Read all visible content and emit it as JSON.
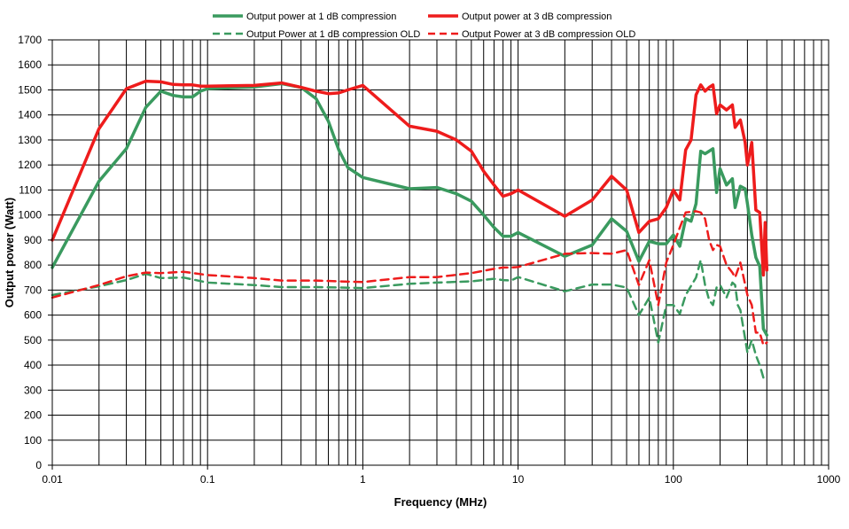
{
  "chart_data": {
    "type": "line",
    "xlabel": "Frequency (MHz)",
    "ylabel": "Output power (Watt)",
    "x_scale": "log",
    "xlim": [
      0.01,
      1000
    ],
    "ylim": [
      0,
      1700
    ],
    "grid": true,
    "legend_position": "top",
    "x_ticks": [
      "0.01",
      "0.1",
      "1",
      "10",
      "100",
      "1000"
    ],
    "y_ticks": [
      "0",
      "100",
      "200",
      "300",
      "400",
      "500",
      "600",
      "700",
      "800",
      "900",
      "1000",
      "1100",
      "1200",
      "1300",
      "1400",
      "1500",
      "1600",
      "1700"
    ],
    "series": [
      {
        "name": "Output power at 1 dB compression",
        "color": "#3a9a5f",
        "style": "solid",
        "points": [
          [
            0.01,
            790
          ],
          [
            0.02,
            1135
          ],
          [
            0.03,
            1265
          ],
          [
            0.04,
            1430
          ],
          [
            0.05,
            1495
          ],
          [
            0.06,
            1478
          ],
          [
            0.07,
            1472
          ],
          [
            0.08,
            1472
          ],
          [
            0.09,
            1495
          ],
          [
            0.1,
            1505
          ],
          [
            0.2,
            1512
          ],
          [
            0.3,
            1525
          ],
          [
            0.4,
            1510
          ],
          [
            0.5,
            1465
          ],
          [
            0.6,
            1375
          ],
          [
            0.7,
            1260
          ],
          [
            0.8,
            1190
          ],
          [
            1,
            1150
          ],
          [
            2,
            1105
          ],
          [
            3,
            1110
          ],
          [
            4,
            1085
          ],
          [
            5,
            1055
          ],
          [
            6,
            1000
          ],
          [
            7,
            950
          ],
          [
            8,
            915
          ],
          [
            9,
            915
          ],
          [
            10,
            930
          ],
          [
            20,
            835
          ],
          [
            30,
            880
          ],
          [
            40,
            985
          ],
          [
            50,
            935
          ],
          [
            60,
            815
          ],
          [
            70,
            895
          ],
          [
            80,
            885
          ],
          [
            90,
            885
          ],
          [
            100,
            920
          ],
          [
            110,
            875
          ],
          [
            120,
            985
          ],
          [
            130,
            975
          ],
          [
            140,
            1045
          ],
          [
            150,
            1255
          ],
          [
            160,
            1245
          ],
          [
            170,
            1255
          ],
          [
            180,
            1265
          ],
          [
            190,
            1090
          ],
          [
            200,
            1185
          ],
          [
            220,
            1120
          ],
          [
            240,
            1145
          ],
          [
            250,
            1030
          ],
          [
            270,
            1115
          ],
          [
            290,
            1105
          ],
          [
            300,
            1045
          ],
          [
            320,
            920
          ],
          [
            340,
            830
          ],
          [
            360,
            795
          ],
          [
            380,
            545
          ],
          [
            400,
            520
          ]
        ]
      },
      {
        "name": "Output power at 3 dB compression",
        "color": "#ee1c1c",
        "style": "solid",
        "points": [
          [
            0.01,
            900
          ],
          [
            0.02,
            1345
          ],
          [
            0.03,
            1505
          ],
          [
            0.04,
            1535
          ],
          [
            0.05,
            1532
          ],
          [
            0.06,
            1522
          ],
          [
            0.07,
            1520
          ],
          [
            0.08,
            1520
          ],
          [
            0.09,
            1515
          ],
          [
            0.1,
            1515
          ],
          [
            0.2,
            1518
          ],
          [
            0.3,
            1528
          ],
          [
            0.4,
            1510
          ],
          [
            0.5,
            1495
          ],
          [
            0.6,
            1485
          ],
          [
            0.7,
            1488
          ],
          [
            0.8,
            1500
          ],
          [
            1,
            1518
          ],
          [
            2,
            1355
          ],
          [
            3,
            1335
          ],
          [
            4,
            1300
          ],
          [
            5,
            1255
          ],
          [
            6,
            1175
          ],
          [
            7,
            1120
          ],
          [
            8,
            1075
          ],
          [
            9,
            1085
          ],
          [
            10,
            1100
          ],
          [
            20,
            995
          ],
          [
            30,
            1060
          ],
          [
            40,
            1155
          ],
          [
            50,
            1100
          ],
          [
            60,
            930
          ],
          [
            70,
            975
          ],
          [
            80,
            985
          ],
          [
            90,
            1030
          ],
          [
            100,
            1100
          ],
          [
            110,
            1060
          ],
          [
            120,
            1260
          ],
          [
            130,
            1300
          ],
          [
            140,
            1480
          ],
          [
            150,
            1520
          ],
          [
            160,
            1495
          ],
          [
            170,
            1510
          ],
          [
            180,
            1520
          ],
          [
            190,
            1405
          ],
          [
            200,
            1440
          ],
          [
            220,
            1420
          ],
          [
            240,
            1440
          ],
          [
            250,
            1350
          ],
          [
            270,
            1380
          ],
          [
            290,
            1290
          ],
          [
            300,
            1200
          ],
          [
            320,
            1290
          ],
          [
            340,
            1020
          ],
          [
            360,
            1010
          ],
          [
            380,
            760
          ],
          [
            390,
            970
          ],
          [
            400,
            780
          ]
        ]
      },
      {
        "name": "Output Power at 1 dB compression OLD",
        "color": "#3a9a5f",
        "style": "dashed",
        "points": [
          [
            0.01,
            680
          ],
          [
            0.02,
            715
          ],
          [
            0.03,
            740
          ],
          [
            0.04,
            765
          ],
          [
            0.05,
            748
          ],
          [
            0.07,
            750
          ],
          [
            0.1,
            730
          ],
          [
            0.2,
            720
          ],
          [
            0.3,
            712
          ],
          [
            0.5,
            712
          ],
          [
            0.7,
            710
          ],
          [
            1,
            708
          ],
          [
            2,
            725
          ],
          [
            3,
            730
          ],
          [
            5,
            735
          ],
          [
            7,
            745
          ],
          [
            8,
            740
          ],
          [
            9,
            738
          ],
          [
            10,
            752
          ],
          [
            20,
            695
          ],
          [
            30,
            722
          ],
          [
            40,
            722
          ],
          [
            50,
            710
          ],
          [
            60,
            600
          ],
          [
            70,
            670
          ],
          [
            80,
            490
          ],
          [
            90,
            640
          ],
          [
            100,
            640
          ],
          [
            110,
            605
          ],
          [
            120,
            680
          ],
          [
            140,
            750
          ],
          [
            150,
            820
          ],
          [
            160,
            720
          ],
          [
            170,
            660
          ],
          [
            180,
            640
          ],
          [
            190,
            710
          ],
          [
            200,
            720
          ],
          [
            220,
            670
          ],
          [
            240,
            730
          ],
          [
            250,
            720
          ],
          [
            260,
            640
          ],
          [
            270,
            620
          ],
          [
            300,
            450
          ],
          [
            320,
            500
          ],
          [
            340,
            440
          ],
          [
            360,
            400
          ],
          [
            380,
            350
          ]
        ]
      },
      {
        "name": "Output Power at 3 dB compression OLD",
        "color": "#ee1c1c",
        "style": "dashed",
        "points": [
          [
            0.01,
            670
          ],
          [
            0.02,
            720
          ],
          [
            0.03,
            755
          ],
          [
            0.04,
            770
          ],
          [
            0.05,
            768
          ],
          [
            0.07,
            773
          ],
          [
            0.1,
            760
          ],
          [
            0.2,
            748
          ],
          [
            0.3,
            738
          ],
          [
            0.5,
            738
          ],
          [
            0.7,
            735
          ],
          [
            1,
            732
          ],
          [
            2,
            752
          ],
          [
            3,
            752
          ],
          [
            5,
            768
          ],
          [
            7,
            785
          ],
          [
            8,
            790
          ],
          [
            9,
            790
          ],
          [
            10,
            792
          ],
          [
            20,
            845
          ],
          [
            30,
            848
          ],
          [
            40,
            845
          ],
          [
            50,
            860
          ],
          [
            60,
            720
          ],
          [
            70,
            820
          ],
          [
            80,
            640
          ],
          [
            90,
            810
          ],
          [
            100,
            880
          ],
          [
            110,
            950
          ],
          [
            120,
            1010
          ],
          [
            140,
            1015
          ],
          [
            150,
            1010
          ],
          [
            160,
            985
          ],
          [
            170,
            900
          ],
          [
            180,
            860
          ],
          [
            190,
            880
          ],
          [
            200,
            875
          ],
          [
            220,
            800
          ],
          [
            240,
            770
          ],
          [
            250,
            750
          ],
          [
            260,
            780
          ],
          [
            270,
            810
          ],
          [
            300,
            680
          ],
          [
            320,
            640
          ],
          [
            340,
            530
          ],
          [
            360,
            530
          ],
          [
            380,
            480
          ],
          [
            400,
            490
          ]
        ]
      }
    ]
  }
}
